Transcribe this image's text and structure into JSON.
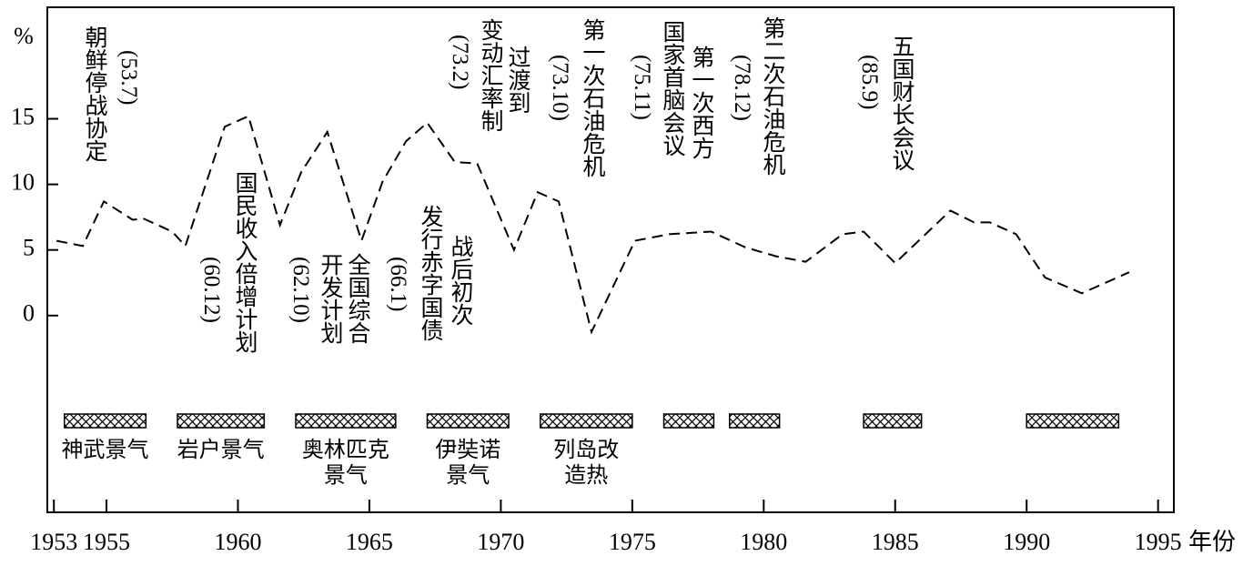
{
  "chart_data": {
    "type": "line",
    "y_label": "%",
    "x_label": "年份",
    "x": [
      1953.1,
      1954.1,
      1954.9,
      1956.0,
      1956.4,
      1957.5,
      1958.0,
      1959.5,
      1960.4,
      1961.6,
      1962.4,
      1963.4,
      1964.7,
      1965.5,
      1966.4,
      1967.2,
      1968.25,
      1969.1,
      1970.5,
      1971.4,
      1972.2,
      1973.45,
      1975.1,
      1976.4,
      1978.0,
      1979.3,
      1980.5,
      1981.6,
      1983.0,
      1983.8,
      1985.0,
      1987.1,
      1988.0,
      1988.6,
      1989.6,
      1990.7,
      1992.1,
      1993.9
    ],
    "series": [
      {
        "color": "#000000",
        "values": [
          5.7,
          5.3,
          8.7,
          7.3,
          7.4,
          6.4,
          5.3,
          14.4,
          15.2,
          6.9,
          10.9,
          14.0,
          5.7,
          10.2,
          13.3,
          14.7,
          11.7,
          11.6,
          5.0,
          9.4,
          8.7,
          -1.25,
          5.7,
          6.2,
          6.4,
          5.2,
          4.5,
          4.1,
          6.2,
          6.4,
          4.0,
          8.0,
          7.1,
          7.1,
          6.2,
          2.9,
          1.7,
          3.3
        ]
      }
    ],
    "line_style": "dashed",
    "xlim": [
      1952.75,
      1995.6
    ],
    "ylim": [
      -15,
      23.5
    ],
    "xticks": [
      1953,
      1955,
      1960,
      1965,
      1970,
      1975,
      1980,
      1985,
      1990,
      1995
    ],
    "yticks": [
      0,
      5,
      10,
      15
    ],
    "periods": [
      {
        "label": "神武景气",
        "start": 1953.4,
        "end": 1956.5
      },
      {
        "label": "岩户景气",
        "start": 1957.7,
        "end": 1961.0
      },
      {
        "label": "奥林匹克景气",
        "start": 1962.2,
        "end": 1966.0
      },
      {
        "label": "伊奘诺景气",
        "start": 1967.2,
        "end": 1970.3
      },
      {
        "label": "列岛改造热",
        "start": 1971.5,
        "end": 1975.0
      },
      {
        "label": null,
        "start": 1976.2,
        "end": 1978.1
      },
      {
        "label": null,
        "start": 1978.7,
        "end": 1980.6
      },
      {
        "label": null,
        "start": 1983.8,
        "end": 1986.0
      },
      {
        "label": null,
        "start": 1990.0,
        "end": 1993.5
      }
    ],
    "annotations": [
      {
        "lines": [
          "朝鲜停战协定"
        ],
        "date": "(53.7)"
      },
      {
        "lines": [
          "国民收入倍增计划"
        ],
        "date": "(60.12)"
      },
      {
        "lines": [
          "全国综合",
          "开发计划"
        ],
        "date": "(62.10)"
      },
      {
        "lines": [
          "战后初次",
          "发行赤字国债"
        ],
        "date": "(66.1)"
      },
      {
        "lines": [
          "过渡到",
          "变动汇率制"
        ],
        "date": "(73.2)"
      },
      {
        "lines": [
          "第一次石油危机"
        ],
        "date": "(73.10)"
      },
      {
        "lines": [
          "第一次西方",
          "国家首脑会议"
        ],
        "date": "(75.11)"
      },
      {
        "lines": [
          "第二次石油危机"
        ],
        "date": "(78.12)"
      },
      {
        "lines": [
          "五国财长会议"
        ],
        "date": "(85.9)"
      }
    ]
  }
}
